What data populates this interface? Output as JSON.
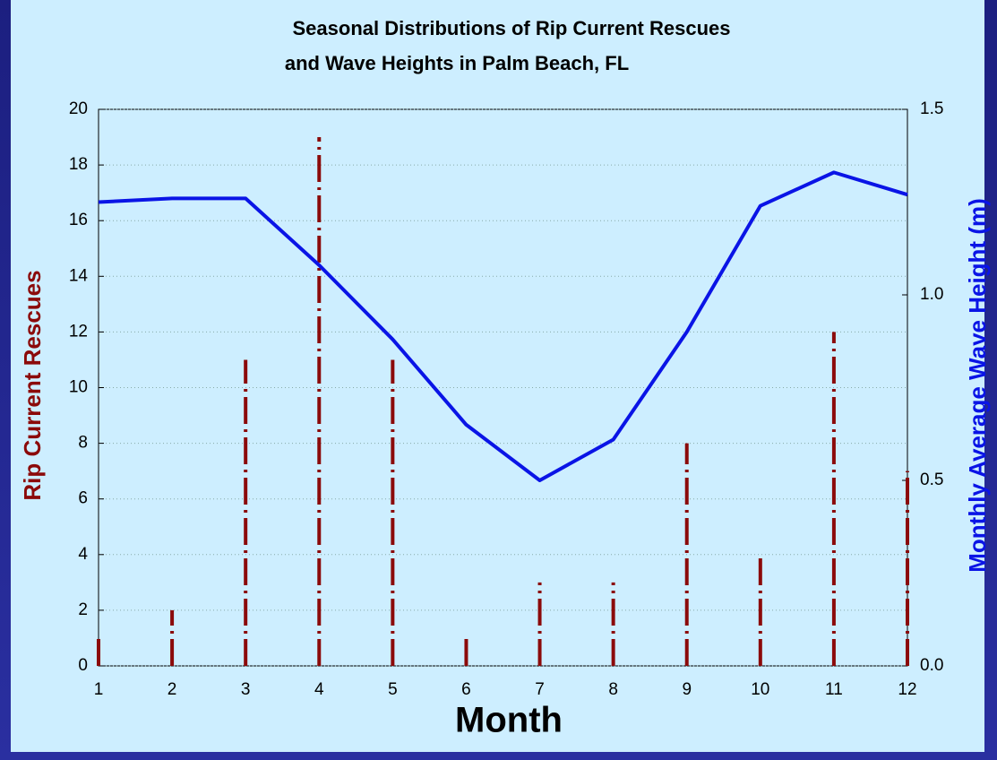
{
  "chart_data": {
    "type": "bar_line",
    "title": [
      "Seasonal Distributions of Rip Current Rescues",
      "and Wave Heights in Palm Beach, FL"
    ],
    "x_label": "Month",
    "y_label": "Rip Current Rescues",
    "y2_label": "Monthly Average Wave Height (m)",
    "x": [
      1,
      2,
      3,
      4,
      5,
      6,
      7,
      8,
      9,
      10,
      11,
      12
    ],
    "xlim": [
      1,
      12
    ],
    "xticks": [
      1,
      2,
      3,
      4,
      5,
      6,
      7,
      8,
      9,
      10,
      11,
      12
    ],
    "ylim": [
      0,
      20
    ],
    "yticks": [
      0,
      2,
      4,
      6,
      8,
      10,
      12,
      14,
      16,
      18,
      20
    ],
    "y2lim": [
      0,
      1.5
    ],
    "y2ticks": [
      {
        "value": 0,
        "label": "0.0"
      },
      0.5,
      {
        "value": 1,
        "label": "1.0"
      },
      1.5
    ],
    "grid": true,
    "series": [
      {
        "name": "Rip Current Rescues",
        "color": "#8b0a0a",
        "type": "bar",
        "values": [
          1,
          2,
          11,
          19,
          11,
          1,
          3,
          3,
          8,
          4,
          12,
          7
        ]
      },
      {
        "name": "Monthly Average Wave Height (m)",
        "color": "#0a14e6",
        "type": "line",
        "axis": "y2",
        "values": [
          1.25,
          1.26,
          1.26,
          1.08,
          0.88,
          0.65,
          0.5,
          0.61,
          0.9,
          1.24,
          1.33,
          1.27
        ]
      }
    ]
  }
}
